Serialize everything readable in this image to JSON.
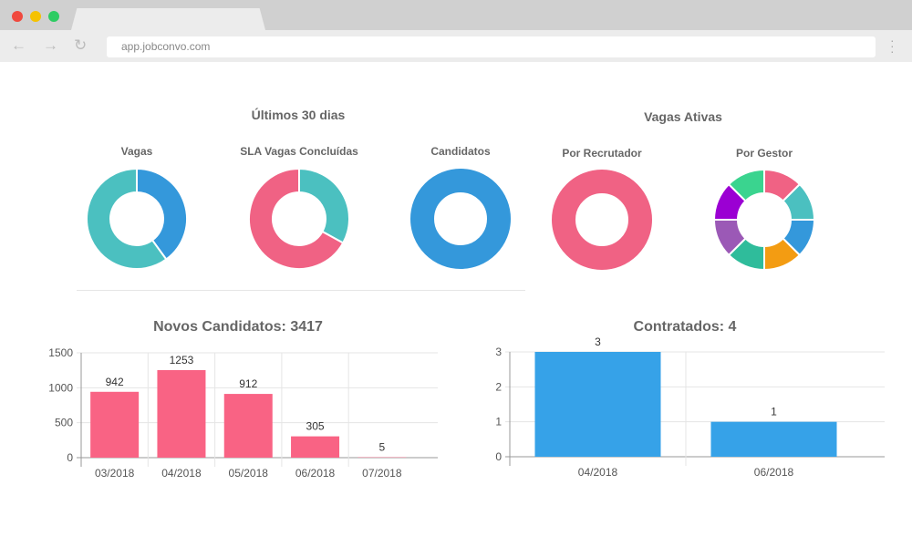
{
  "browser": {
    "url": "app.jobconvo.com",
    "dots": [
      "#f0493e",
      "#f5c200",
      "#2ecc63"
    ]
  },
  "sections": {
    "last30": "Últimos 30 dias",
    "active": "Vagas Ativas"
  },
  "donuts": [
    {
      "title": "Vagas",
      "slices": [
        {
          "value": 40,
          "color": "#3498db"
        },
        {
          "value": 60,
          "color": "#4bc0c0"
        }
      ]
    },
    {
      "title": "SLA Vagas Concluídas",
      "slices": [
        {
          "value": 33,
          "color": "#4bc0c0"
        },
        {
          "value": 67,
          "color": "#f06284"
        }
      ]
    },
    {
      "title": "Candidatos",
      "slices": [
        {
          "value": 100,
          "color": "#3498db"
        }
      ]
    },
    {
      "title": "Por Recrutador",
      "slices": [
        {
          "value": 100,
          "color": "#f06284"
        }
      ]
    },
    {
      "title": "Por Gestor",
      "slices": [
        {
          "value": 1,
          "color": "#f06284"
        },
        {
          "value": 1,
          "color": "#4bc0c0"
        },
        {
          "value": 1,
          "color": "#3498db"
        },
        {
          "value": 1,
          "color": "#f39c12"
        },
        {
          "value": 1,
          "color": "#2fbc9b"
        },
        {
          "value": 1,
          "color": "#9b59b6"
        },
        {
          "value": 1,
          "color": "#9b00d3"
        },
        {
          "value": 1,
          "color": "#3ad48f"
        }
      ]
    }
  ],
  "chart_data": [
    {
      "type": "bar",
      "title": "Novos Candidatos: 3417",
      "categories": [
        "03/2018",
        "04/2018",
        "05/2018",
        "06/2018",
        "07/2018"
      ],
      "values": [
        942,
        1253,
        912,
        305,
        5
      ],
      "yticks": [
        "0",
        "500",
        "1000",
        "1500"
      ],
      "ylim": [
        0,
        1500
      ],
      "color": "#f96384",
      "grid": true
    },
    {
      "type": "bar",
      "title": "Contratados: 4",
      "categories": [
        "04/2018",
        "06/2018"
      ],
      "values": [
        3,
        1
      ],
      "yticks": [
        "0",
        "1",
        "2",
        "3"
      ],
      "ylim": [
        0,
        3
      ],
      "color": "#36a2e8",
      "grid": true
    }
  ]
}
